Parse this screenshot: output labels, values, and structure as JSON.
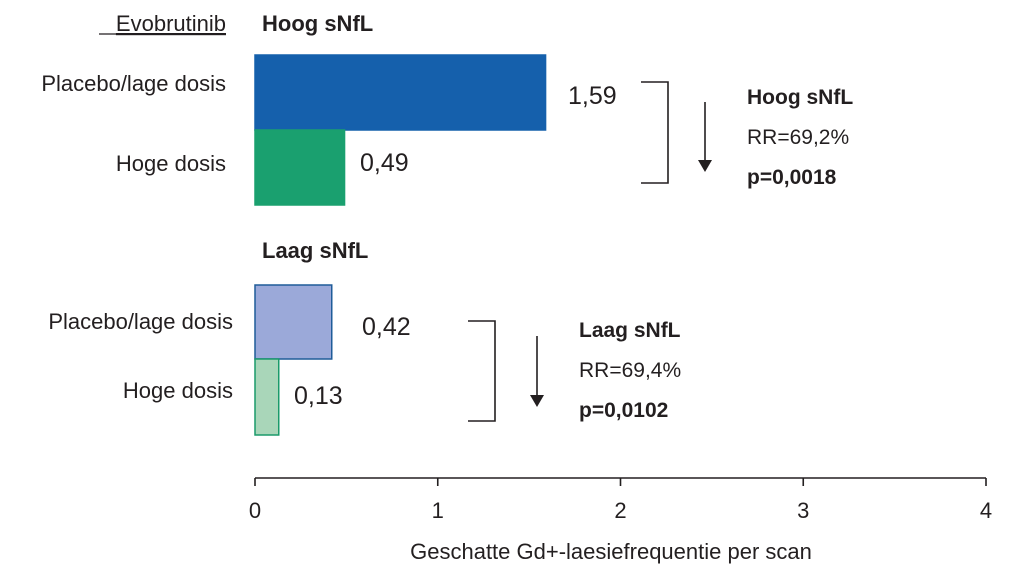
{
  "chart_data": {
    "type": "bar",
    "orientation": "horizontal",
    "legend_header": "Evobrutinib",
    "groups": [
      {
        "title": "Hoog sNfL",
        "bars": [
          {
            "category": "Placebo/lage dosis",
            "value": 1.59,
            "label": "1,59",
            "color": "#1560ac",
            "stroke": "#1560ac"
          },
          {
            "category": "Hoge dosis",
            "value": 0.49,
            "label": "0,49",
            "color": "#1aa06f",
            "stroke": "#1aa06f"
          }
        ],
        "stat": {
          "title": "Hoog sNfL",
          "rr": "RR=69,2%",
          "p": "p=0,0018"
        }
      },
      {
        "title": "Laag sNfL",
        "bars": [
          {
            "category": "Placebo/lage dosis",
            "value": 0.42,
            "label": "0,42",
            "color": "#9ba9d9",
            "stroke": "#1f5c99"
          },
          {
            "category": "Hoge dosis",
            "value": 0.13,
            "label": "0,13",
            "color": "#a9d6b9",
            "stroke": "#1a9a6a"
          }
        ],
        "stat": {
          "title": "Laag sNfL",
          "rr": "RR=69,4%",
          "p": "p=0,0102"
        }
      }
    ],
    "xlim": [
      0,
      4
    ],
    "xticks": [
      "0",
      "1",
      "2",
      "3",
      "4"
    ],
    "xlabel": "Geschatte Gd+-laesiefrequentie per scan",
    "grid": false
  }
}
